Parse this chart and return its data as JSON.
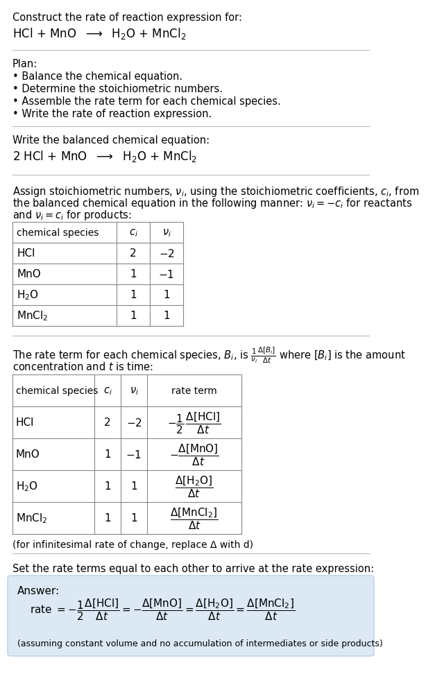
{
  "bg_color": "#ffffff",
  "text_color": "#000000",
  "answer_bg": "#dce9f5",
  "answer_border": "#b8d0e8",
  "font_size_body": 10.5,
  "font_size_reaction": 12,
  "font_size_small": 9.5,
  "sections": {
    "s1_title": "Construct the rate of reaction expression for:",
    "s1_reaction": "HCl + MnO  ⟶  H₂O + MnCl₂",
    "s2_plan_title": "Plan:",
    "s2_plan_items": [
      "• Balance the chemical equation.",
      "• Determine the stoichiometric numbers.",
      "• Assemble the rate term for each chemical species.",
      "• Write the rate of reaction expression."
    ],
    "s3_label": "Write the balanced chemical equation:",
    "s3_reaction": "2 HCl + MnO  ⟶  H₂O + MnCl₂",
    "s4_line1": "Assign stoichiometric numbers, νi, using the stoichiometric coefficients, ci, from",
    "s4_line2": "the balanced chemical equation in the following manner: νi = −ci for reactants",
    "s4_line3": "and νi = ci for products:",
    "t1_headers": [
      "chemical species",
      "ci",
      "νi"
    ],
    "t1_rows": [
      [
        "HCl",
        "2",
        "−2"
      ],
      [
        "MnO",
        "1",
        "−1"
      ],
      [
        "H₂O",
        "1",
        "1"
      ],
      [
        "MnCl₂",
        "1",
        "1"
      ]
    ],
    "s5_line1": "The rate term for each chemical species, Bi, is (1/νi)(Δ[Bi]/Δt) where [Bi] is the amount",
    "s5_line2": "concentration and t is time:",
    "t2_headers": [
      "chemical species",
      "ci",
      "νi",
      "rate term"
    ],
    "t2_rows": [
      [
        "HCl",
        "2",
        "−2",
        "rate_hcl"
      ],
      [
        "MnO",
        "1",
        "−1",
        "rate_mno"
      ],
      [
        "H₂O",
        "1",
        "1",
        "rate_h2o"
      ],
      [
        "MnCl₂",
        "1",
        "1",
        "rate_mncl2"
      ]
    ],
    "s5_note": "(for infinitesimal rate of change, replace Δ with d)",
    "s6_text": "Set the rate terms equal to each other to arrive at the rate expression:",
    "answer_label": "Answer:",
    "assuming_text": "(assuming constant volume and no accumulation of intermediates or side products)"
  }
}
